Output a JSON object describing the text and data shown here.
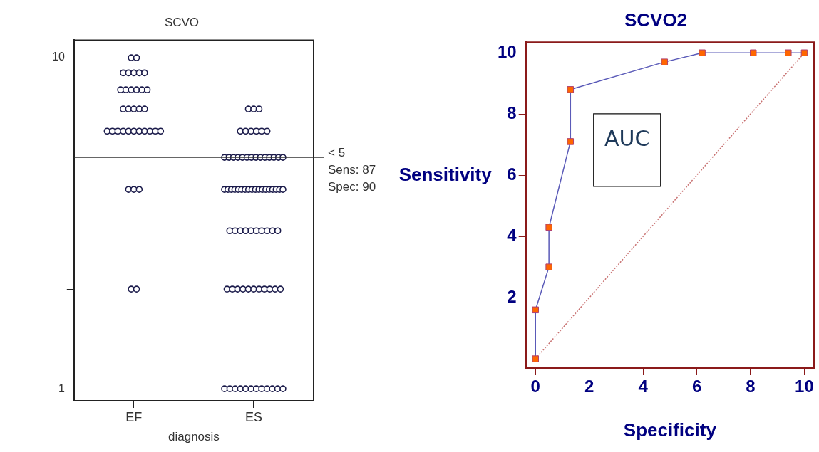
{
  "chart_data": [
    {
      "type": "scatter",
      "title": "SCVO",
      "xlabel": "diagnosis",
      "categories": [
        "EF",
        "ES"
      ],
      "log": "y",
      "ylim": [
        0.92,
        11.3
      ],
      "yticks": [
        1,
        {
          "value": 2,
          "label": null
        },
        {
          "value": 3,
          "label": null
        },
        10
      ],
      "grid": false,
      "legend": false,
      "marker": "circle",
      "series": [
        {
          "color": "#1a1a4a",
          "x": [
            "EF",
            "EF",
            "EF",
            "EF",
            "EF",
            "EF",
            "EF",
            "EF",
            "EF",
            "EF",
            "EF",
            "EF",
            "EF",
            "EF",
            "EF",
            "EF",
            "EF",
            "EF",
            "EF",
            "EF",
            "EF",
            "EF",
            "EF",
            "EF",
            "EF",
            "EF",
            "EF",
            "EF",
            "EF",
            "EF",
            "EF",
            "EF",
            "EF",
            "EF"
          ],
          "values": [
            10,
            10,
            9,
            9,
            9,
            9,
            9,
            8,
            8,
            8,
            8,
            8,
            8,
            7,
            7,
            7,
            7,
            7,
            6,
            6,
            6,
            6,
            6,
            6,
            6,
            6,
            6,
            6,
            6,
            4,
            4,
            4,
            2,
            2
          ]
        },
        {
          "color": "#1a1a4a",
          "x": [
            "ES",
            "ES",
            "ES",
            "ES",
            "ES",
            "ES",
            "ES",
            "ES",
            "ES",
            "ES",
            "ES",
            "ES",
            "ES",
            "ES",
            "ES",
            "ES",
            "ES",
            "ES",
            "ES",
            "ES",
            "ES",
            "ES",
            "ES",
            "ES",
            "ES",
            "ES",
            "ES",
            "ES",
            "ES",
            "ES",
            "ES",
            "ES",
            "ES",
            "ES",
            "ES",
            "ES",
            "ES",
            "ES",
            "ES",
            "ES",
            "ES",
            "ES",
            "ES",
            "ES",
            "ES",
            "ES",
            "ES",
            "ES",
            "ES",
            "ES",
            "ES",
            "ES",
            "ES",
            "ES",
            "ES",
            "ES",
            "ES",
            "ES",
            "ES",
            "ES",
            "ES",
            "ES",
            "ES",
            "ES",
            "ES",
            "ES",
            "ES",
            "ES",
            "ES",
            "ES",
            "ES",
            "ES",
            "ES",
            "ES"
          ],
          "values": [
            7,
            7,
            7,
            6,
            6,
            6,
            6,
            6,
            6,
            5,
            5,
            5,
            5,
            5,
            5,
            5,
            5,
            5,
            5,
            5,
            5,
            5,
            5,
            4,
            4,
            4,
            4,
            4,
            4,
            4,
            4,
            4,
            4,
            4,
            4,
            4,
            4,
            4,
            4,
            4,
            4,
            3,
            3,
            3,
            3,
            3,
            3,
            3,
            3,
            3,
            3,
            2,
            2,
            2,
            2,
            2,
            2,
            2,
            2,
            2,
            2,
            2,
            1,
            1,
            1,
            1,
            1,
            1,
            1,
            1,
            1,
            1,
            1,
            1
          ]
        }
      ],
      "ref_lines": [
        {
          "axis": "y",
          "value": 5,
          "label": "< 5",
          "color": "#333333"
        }
      ],
      "annotations": [
        "Sens: 87",
        "Spec: 90"
      ]
    },
    {
      "type": "line",
      "title": "SCVO2",
      "xlabel": "Specificity",
      "ylabel": "Sensitivity",
      "xlim": [
        -0.36,
        10.36
      ],
      "ylim": [
        -0.3,
        10.35
      ],
      "xticks": [
        0,
        2,
        4,
        6,
        8,
        10
      ],
      "yticks": [
        2,
        4,
        6,
        8,
        10
      ],
      "grid": false,
      "legend": false,
      "marker": "square",
      "series": [
        {
          "color": "#ff6600",
          "x": [
            0,
            0,
            0.5,
            0.5,
            1.3,
            1.3,
            4.8,
            6.2,
            8.1,
            9.4,
            10
          ],
          "values": [
            0,
            1.6,
            3,
            4.3,
            7.1,
            8.8,
            9.7,
            10,
            10,
            10,
            10
          ]
        },
        {
          "color": "#c87070",
          "x": [
            0,
            10
          ],
          "values": [
            0,
            10
          ],
          "marker": "none",
          "line_style": "dotted"
        }
      ],
      "annotations": [
        "AUC"
      ]
    }
  ]
}
